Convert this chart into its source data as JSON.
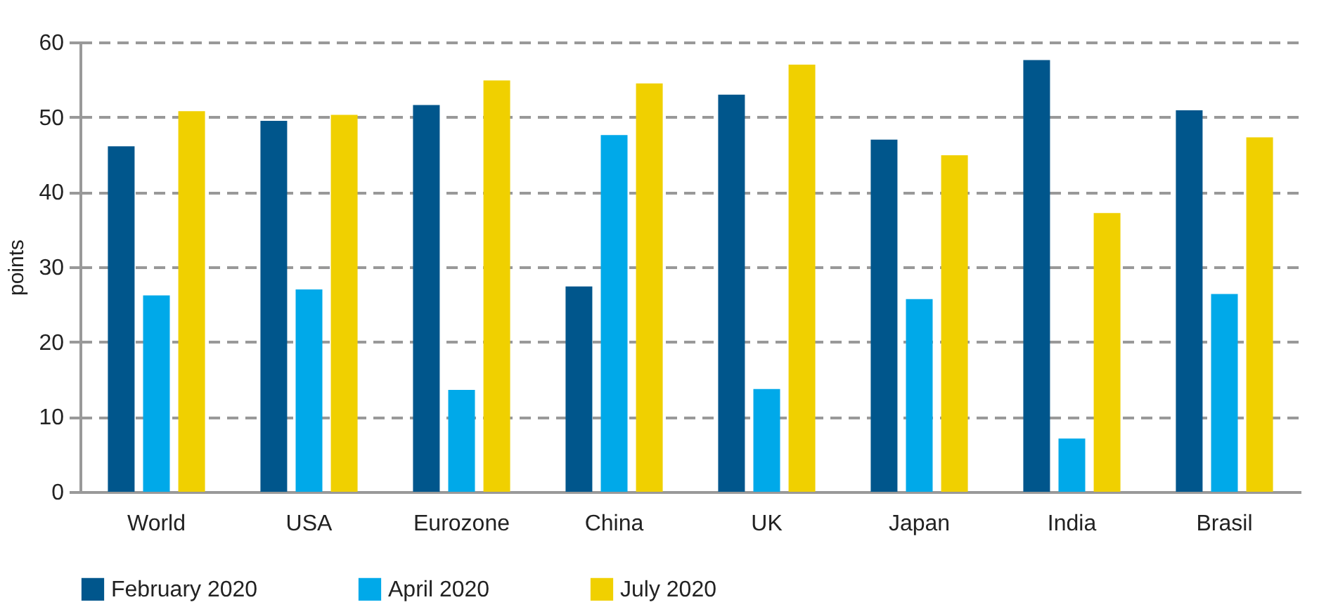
{
  "chart_data": {
    "type": "bar",
    "ylabel": "points",
    "categories": [
      "World",
      "USA",
      "Eurozone",
      "China",
      "UK",
      "Japan",
      "India",
      "Brasil"
    ],
    "series": [
      {
        "name": "February 2020",
        "color": "#00568c",
        "values": [
          46.1,
          49.5,
          51.6,
          27.4,
          53.0,
          47.0,
          57.6,
          50.9
        ]
      },
      {
        "name": "April 2020",
        "color": "#00a9e9",
        "values": [
          26.2,
          27.0,
          13.6,
          47.6,
          13.7,
          25.7,
          7.1,
          26.4
        ]
      },
      {
        "name": "July 2020",
        "color": "#f0d000",
        "values": [
          50.8,
          50.3,
          54.9,
          54.5,
          57.0,
          44.9,
          37.2,
          47.3
        ]
      }
    ],
    "ylim": [
      0,
      60
    ],
    "yticks": [
      0,
      10,
      20,
      30,
      40,
      50,
      60
    ],
    "grid": "y",
    "legend": "bottom"
  }
}
